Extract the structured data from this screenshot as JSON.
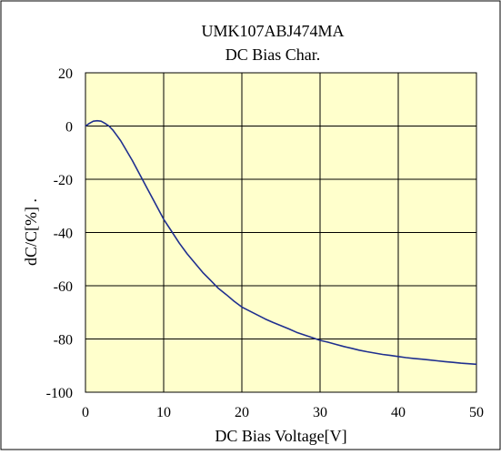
{
  "chart_data": {
    "type": "line",
    "title": "UMK107ABJ474MA",
    "subtitle": "DC Bias Char.",
    "xlabel": "DC Bias Voltage[V]",
    "ylabel": "dC/C[%] .",
    "xlim": [
      0,
      50
    ],
    "ylim": [
      -100,
      20
    ],
    "x_ticks": [
      0,
      10,
      20,
      30,
      40,
      50
    ],
    "y_ticks": [
      20,
      0,
      -20,
      -40,
      -60,
      -80,
      -100
    ],
    "grid": true,
    "legend": "none",
    "colors": {
      "plot_background": "#ffffcc",
      "line": "#1f2f8f",
      "grid": "#000000"
    },
    "series": [
      {
        "x": [
          0,
          0.5,
          1,
          1.5,
          2,
          2.5,
          3,
          3.5,
          4,
          4.5,
          5,
          6,
          7,
          8,
          9,
          10,
          11,
          12,
          13,
          14,
          15,
          16,
          17,
          18,
          19,
          20,
          21,
          22,
          23,
          24,
          25,
          26,
          27,
          28,
          29,
          30,
          31,
          32,
          33,
          34,
          35,
          36,
          37,
          38,
          39,
          40,
          41,
          42,
          43,
          44,
          45,
          46,
          47,
          48,
          49,
          50
        ],
        "y": [
          0,
          1,
          1.8,
          2,
          1.8,
          1,
          0,
          -1.5,
          -3.5,
          -5.5,
          -8,
          -13,
          -18.5,
          -24,
          -29.5,
          -35,
          -39.5,
          -44,
          -48,
          -51.5,
          -55,
          -58,
          -61,
          -63.3,
          -65.8,
          -68,
          -69.5,
          -71,
          -72.5,
          -73.8,
          -75,
          -76.2,
          -77.5,
          -78.5,
          -79.5,
          -80.5,
          -81.2,
          -82,
          -82.8,
          -83.5,
          -84.2,
          -84.8,
          -85.3,
          -85.8,
          -86.2,
          -86.6,
          -87,
          -87.3,
          -87.6,
          -87.9,
          -88.2,
          -88.5,
          -88.8,
          -89.1,
          -89.3,
          -89.5
        ]
      }
    ]
  }
}
